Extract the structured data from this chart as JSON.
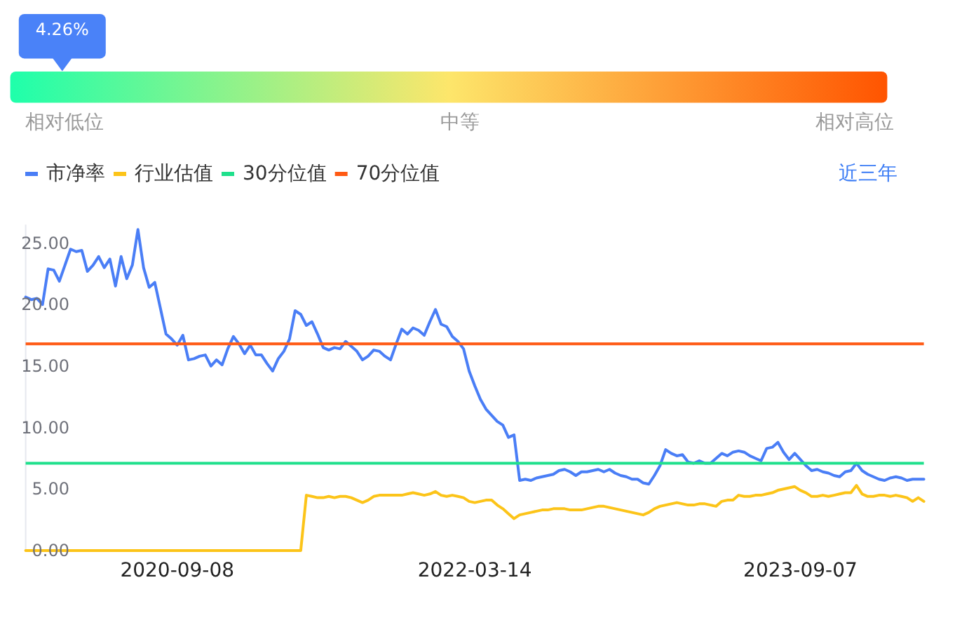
{
  "chart_data": [
    {
      "type": "other",
      "values": [
        4.26
      ],
      "value_labels": [
        "4.26%"
      ],
      "color": "#4a82f8",
      "annotations": [
        "相对低位",
        "中等",
        "相对高位"
      ]
    },
    {
      "type": "line",
      "legend": "top left",
      "annotations": [
        "近三年"
      ],
      "categories": [
        null,
        null,
        null,
        null,
        null,
        null,
        null,
        null,
        null,
        null,
        null,
        null,
        null,
        null,
        null,
        null,
        null,
        null,
        null,
        null,
        null,
        null,
        null,
        null,
        null,
        null,
        null,
        "2020-09-08",
        null,
        null,
        null,
        null,
        null,
        null,
        null,
        null,
        null,
        null,
        null,
        null,
        null,
        null,
        null,
        null,
        null,
        null,
        null,
        null,
        null,
        null,
        null,
        null,
        null,
        null,
        null,
        null,
        null,
        null,
        null,
        null,
        null,
        null,
        null,
        null,
        null,
        null,
        null,
        null,
        null,
        null,
        null,
        null,
        null,
        null,
        null,
        null,
        null,
        null,
        null,
        null,
        "2022-03-14",
        null,
        null,
        null,
        null,
        null,
        null,
        null,
        null,
        null,
        null,
        null,
        null,
        null,
        null,
        null,
        null,
        null,
        null,
        null,
        null,
        null,
        null,
        null,
        null,
        null,
        null,
        null,
        null,
        null,
        null,
        null,
        null,
        null,
        null,
        null,
        null,
        null,
        null,
        null,
        null,
        null,
        null,
        null,
        null,
        null,
        null,
        null,
        null,
        null,
        null,
        null,
        null,
        null,
        null,
        null,
        null,
        null,
        "2023-09-07",
        null,
        null,
        null,
        null,
        null,
        null,
        null,
        null,
        null,
        null,
        null,
        null,
        null,
        null,
        null,
        null,
        null,
        null,
        null,
        null,
        null,
        null
      ],
      "series": [
        {
          "name": "市净率",
          "color": "#4a7ef6",
          "values": [
            20.6,
            20.4,
            20.5,
            20.0,
            22.9,
            22.8,
            21.9,
            23.2,
            24.5,
            24.3,
            24.4,
            22.7,
            23.2,
            23.9,
            23.0,
            23.7,
            21.5,
            23.9,
            22.1,
            23.2,
            26.1,
            23.0,
            21.4,
            21.8,
            19.7,
            17.6,
            17.2,
            16.7,
            17.5,
            15.5,
            15.6,
            15.8,
            15.9,
            15.0,
            15.5,
            15.1,
            16.4,
            17.4,
            16.8,
            16.0,
            16.7,
            15.9,
            15.9,
            15.2,
            14.6,
            15.6,
            16.2,
            17.2,
            19.5,
            19.2,
            18.3,
            18.6,
            17.6,
            16.5,
            16.3,
            16.5,
            16.4,
            17.0,
            16.6,
            16.2,
            15.5,
            15.8,
            16.3,
            16.2,
            15.8,
            15.5,
            16.8,
            18.0,
            17.6,
            18.1,
            17.9,
            17.5,
            18.6,
            19.6,
            18.4,
            18.2,
            17.4,
            17.0,
            16.4,
            14.6,
            13.4,
            12.3,
            11.5,
            11.0,
            10.5,
            10.2,
            9.2,
            9.4,
            5.7,
            5.8,
            5.7,
            5.9,
            6.0,
            6.1,
            6.2,
            6.5,
            6.6,
            6.4,
            6.1,
            6.4,
            6.4,
            6.5,
            6.6,
            6.4,
            6.6,
            6.3,
            6.1,
            6.0,
            5.8,
            5.8,
            5.5,
            5.4,
            6.1,
            6.9,
            8.2,
            7.9,
            7.7,
            7.8,
            7.2,
            7.1,
            7.3,
            7.1,
            7.1,
            7.5,
            7.9,
            7.7,
            8.0,
            8.1,
            8.0,
            7.7,
            7.5,
            7.3,
            8.3,
            8.4,
            8.8,
            8.0,
            7.4,
            7.9,
            7.4,
            6.9,
            6.5,
            6.6,
            6.4,
            6.3,
            6.1,
            6.0,
            6.4,
            6.5,
            7.1,
            6.5,
            6.2,
            6.0,
            5.8,
            5.7,
            5.9,
            6.0,
            5.9,
            5.7,
            5.8,
            5.8,
            5.8
          ]
        },
        {
          "name": "行业估值",
          "color": "#fcc419",
          "values": [
            0,
            0,
            0,
            0,
            0,
            0,
            0,
            0,
            0,
            0,
            0,
            0,
            0,
            0,
            0,
            0,
            0,
            0,
            0,
            0,
            0,
            0,
            0,
            0,
            0,
            0,
            0,
            0,
            0,
            0,
            0,
            0,
            0,
            0,
            0,
            0,
            0,
            0,
            0,
            0,
            0,
            0,
            0,
            0,
            0,
            0,
            0,
            0,
            0,
            0,
            4.5,
            4.4,
            4.3,
            4.3,
            4.4,
            4.3,
            4.4,
            4.4,
            4.3,
            4.1,
            3.9,
            4.1,
            4.4,
            4.5,
            4.5,
            4.5,
            4.5,
            4.5,
            4.6,
            4.7,
            4.6,
            4.5,
            4.6,
            4.8,
            4.5,
            4.4,
            4.5,
            4.4,
            4.3,
            4.0,
            3.9,
            4.0,
            4.1,
            4.1,
            3.7,
            3.4,
            3.0,
            2.6,
            2.9,
            3.0,
            3.1,
            3.2,
            3.3,
            3.3,
            3.4,
            3.4,
            3.4,
            3.3,
            3.3,
            3.3,
            3.4,
            3.5,
            3.6,
            3.6,
            3.5,
            3.4,
            3.3,
            3.2,
            3.1,
            3.0,
            2.9,
            3.1,
            3.4,
            3.6,
            3.7,
            3.8,
            3.9,
            3.8,
            3.7,
            3.7,
            3.8,
            3.8,
            3.7,
            3.6,
            4.0,
            4.1,
            4.1,
            4.5,
            4.4,
            4.4,
            4.5,
            4.5,
            4.6,
            4.7,
            4.9,
            5.0,
            5.1,
            5.2,
            4.9,
            4.7,
            4.4,
            4.4,
            4.5,
            4.4,
            4.5,
            4.6,
            4.7,
            4.7,
            5.3,
            4.6,
            4.4,
            4.4,
            4.5,
            4.5,
            4.4,
            4.5,
            4.4,
            4.3,
            4.0,
            4.3,
            4.0
          ]
        }
      ],
      "ref_lines": [
        {
          "axis": "y",
          "value": 7.1,
          "label": "30分位值",
          "color": "#1fe08c"
        },
        {
          "axis": "y",
          "value": 16.8,
          "label": "70分位值",
          "color": "#ff5a14"
        }
      ],
      "ylim": [
        0,
        26.5
      ],
      "yticks": [
        {
          "value": 0,
          "label": "0.00"
        },
        {
          "value": 5,
          "label": "5.00"
        },
        {
          "value": 10,
          "label": "10.00"
        },
        {
          "value": 15,
          "label": "15.00"
        },
        {
          "value": 20,
          "label": "20.00"
        },
        {
          "value": 25,
          "label": "25.00"
        }
      ]
    }
  ]
}
